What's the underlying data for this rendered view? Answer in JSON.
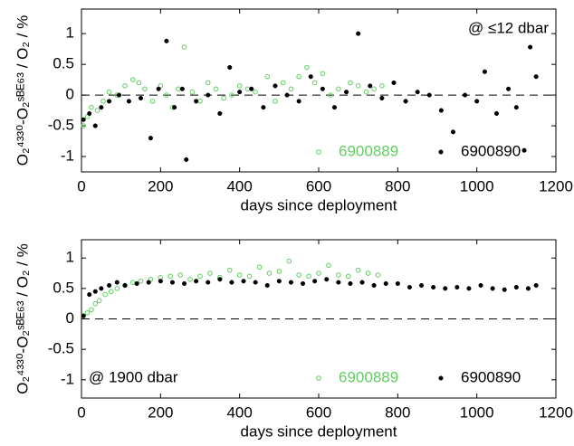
{
  "chart_data": [
    {
      "type": "scatter",
      "annotation": "@ ≤12 dbar",
      "annotation_position": "upper right",
      "xlabel": "days since deployment",
      "ylabel": "O₂⁴³³⁰-O₂ˢᴮᴱ⁶³ / O₂ / %",
      "xlim": [
        0,
        1200
      ],
      "xticks": [
        0,
        200,
        400,
        600,
        800,
        1000,
        1200
      ],
      "ylim": [
        -1.25,
        1.4
      ],
      "yticks": [
        -1,
        -0.5,
        0,
        0.5,
        1
      ],
      "reference_line": 0,
      "legend": "lower right",
      "series": [
        {
          "name": "6900889",
          "color": "#5fcf5f",
          "marker": "open",
          "x": [
            5,
            15,
            25,
            40,
            55,
            70,
            90,
            110,
            130,
            145,
            160,
            180,
            200,
            215,
            230,
            245,
            260,
            280,
            300,
            320,
            340,
            360,
            380,
            400,
            420,
            440,
            470,
            490,
            510,
            530,
            550,
            570,
            590,
            610,
            630,
            650,
            680,
            700,
            720,
            740,
            760
          ],
          "y": [
            -0.5,
            -0.35,
            -0.2,
            -0.25,
            -0.1,
            0.05,
            0.0,
            0.15,
            0.25,
            0.2,
            0.1,
            -0.1,
            0.15,
            0.0,
            -0.2,
            0.1,
            0.78,
            0.05,
            -0.1,
            0.2,
            0.1,
            -0.05,
            0.0,
            0.15,
            0.1,
            0.05,
            0.3,
            -0.1,
            0.2,
            0.1,
            0.3,
            0.45,
            0.2,
            0.35,
            0.0,
            0.1,
            0.2,
            0.15,
            0.05,
            0.1,
            0.15
          ]
        },
        {
          "name": "6900890",
          "color": "#000000",
          "marker": "filled",
          "x": [
            5,
            20,
            35,
            50,
            70,
            95,
            120,
            150,
            175,
            195,
            215,
            235,
            255,
            265,
            290,
            320,
            350,
            375,
            400,
            430,
            460,
            490,
            520,
            550,
            580,
            610,
            640,
            670,
            700,
            730,
            760,
            790,
            820,
            850,
            880,
            910,
            940,
            970,
            1000,
            1020,
            1050,
            1080,
            1100,
            1120,
            1135,
            1150
          ],
          "y": [
            -0.4,
            -0.3,
            -0.5,
            -0.2,
            -0.1,
            0.0,
            -0.1,
            -0.05,
            -0.7,
            0.1,
            0.88,
            -0.2,
            0.1,
            -1.05,
            -0.1,
            0.0,
            -0.3,
            0.45,
            0.05,
            0.1,
            -0.2,
            0.15,
            0.0,
            -0.1,
            0.3,
            0.1,
            -0.2,
            0.05,
            1.0,
            0.15,
            -0.05,
            0.2,
            -0.1,
            0.05,
            0.0,
            -0.25,
            -0.6,
            0.0,
            -0.1,
            0.38,
            -0.3,
            0.1,
            -0.2,
            -0.9,
            0.78,
            0.3
          ]
        }
      ]
    },
    {
      "type": "scatter",
      "annotation": "@ 1900 dbar",
      "annotation_position": "lower left",
      "xlabel": "days since deployment",
      "ylabel": "O₂⁴³³⁰-O₂ˢᴮᴱ⁶³ / O₂ / %",
      "xlim": [
        0,
        1200
      ],
      "xticks": [
        0,
        200,
        400,
        600,
        800,
        1000,
        1200
      ],
      "ylim": [
        -1.3,
        1.3
      ],
      "yticks": [
        -1,
        -0.5,
        0,
        0.5,
        1
      ],
      "reference_line": 0,
      "legend": "lower right",
      "series": [
        {
          "name": "6900889",
          "color": "#5fcf5f",
          "marker": "open",
          "x": [
            5,
            15,
            25,
            35,
            45,
            60,
            75,
            90,
            110,
            130,
            150,
            175,
            200,
            225,
            250,
            275,
            300,
            325,
            350,
            375,
            400,
            425,
            450,
            475,
            500,
            525,
            550,
            575,
            600,
            625,
            650,
            675,
            700,
            725,
            750
          ],
          "y": [
            0.05,
            0.1,
            0.15,
            0.25,
            0.3,
            0.4,
            0.45,
            0.5,
            0.55,
            0.6,
            0.62,
            0.65,
            0.68,
            0.7,
            0.72,
            0.65,
            0.7,
            0.75,
            0.68,
            0.8,
            0.72,
            0.7,
            0.85,
            0.75,
            0.78,
            0.95,
            0.72,
            0.7,
            0.75,
            0.88,
            0.72,
            0.7,
            0.8,
            0.75,
            0.72
          ]
        },
        {
          "name": "6900890",
          "color": "#000000",
          "marker": "filled",
          "x": [
            5,
            20,
            35,
            50,
            70,
            90,
            110,
            140,
            170,
            200,
            230,
            260,
            290,
            320,
            350,
            380,
            410,
            440,
            470,
            500,
            530,
            560,
            590,
            620,
            650,
            680,
            710,
            740,
            770,
            800,
            830,
            860,
            890,
            920,
            950,
            980,
            1010,
            1040,
            1070,
            1100,
            1130,
            1150
          ],
          "y": [
            0.05,
            0.4,
            0.45,
            0.5,
            0.55,
            0.6,
            0.55,
            0.58,
            0.6,
            0.62,
            0.6,
            0.58,
            0.62,
            0.6,
            0.65,
            0.6,
            0.62,
            0.6,
            0.55,
            0.62,
            0.6,
            0.58,
            0.62,
            0.65,
            0.6,
            0.58,
            0.6,
            0.55,
            0.58,
            0.58,
            0.52,
            0.55,
            0.52,
            0.5,
            0.52,
            0.5,
            0.55,
            0.5,
            0.48,
            0.52,
            0.5,
            0.55
          ]
        }
      ]
    }
  ]
}
